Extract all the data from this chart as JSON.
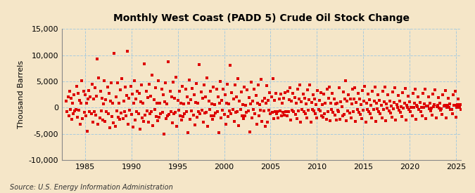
{
  "title": "Monthly West Coast (PADD 5) Crude Oil Stock Change",
  "ylabel": "Thousand Barrels",
  "source": "Source: U.S. Energy Information Administration",
  "bg_color": "#F5E6C8",
  "plot_bg": "#FDF6E3",
  "marker_color": "#DD0000",
  "grid_color": "#AAAAAA",
  "ylim": [
    -10000,
    15000
  ],
  "xlim": [
    1982.5,
    2025.5
  ],
  "yticks": [
    -10000,
    -5000,
    0,
    5000,
    10000,
    15000
  ],
  "xticks": [
    1985,
    1990,
    1995,
    2000,
    2005,
    2010,
    2015,
    2020,
    2025
  ],
  "start_year": 1983,
  "start_month": 1,
  "values": [
    1200,
    -800,
    2100,
    -1500,
    3200,
    -400,
    1800,
    -2200,
    900,
    -1100,
    2500,
    -600,
    -300,
    4100,
    -1800,
    2800,
    -500,
    1400,
    -3200,
    800,
    5200,
    -2100,
    3100,
    -900,
    2400,
    -1600,
    900,
    -4500,
    1700,
    3300,
    -800,
    2100,
    -1200,
    4500,
    -2800,
    1600,
    -700,
    3800,
    -1400,
    2200,
    9300,
    -3100,
    5700,
    -1900,
    3200,
    -600,
    1800,
    -2400,
    700,
    5100,
    -2600,
    1500,
    -800,
    3900,
    -1100,
    2700,
    -3800,
    1200,
    4800,
    -1700,
    800,
    -2900,
    10300,
    -3500,
    2100,
    -600,
    4700,
    -1800,
    900,
    -2200,
    3400,
    -1000,
    5600,
    -2100,
    1300,
    -700,
    3900,
    -1500,
    2300,
    10700,
    -3200,
    1800,
    -500,
    4100,
    -1300,
    2600,
    -3700,
    900,
    5200,
    -2400,
    1600,
    -800,
    3100,
    -1200,
    2800,
    -4100,
    1100,
    4300,
    -1900,
    800,
    -2600,
    8300,
    -1400,
    3200,
    -600,
    1900,
    -2800,
    4500,
    -1100,
    2200,
    -800,
    6200,
    -3400,
    1500,
    -400,
    3800,
    -1700,
    900,
    -2500,
    5100,
    -1800,
    800,
    -1200,
    3600,
    -900,
    2400,
    -5000,
    1100,
    4700,
    -2100,
    700,
    -1600,
    8700,
    -1300,
    3100,
    -700,
    2000,
    -2900,
    4900,
    -1200,
    1800,
    -900,
    5800,
    -3600,
    1400,
    -500,
    3200,
    -1500,
    800,
    -2300,
    4100,
    -1700,
    700,
    -1100,
    3600,
    -800,
    2100,
    -4800,
    900,
    5300,
    -2200,
    1500,
    -600,
    3700,
    -1400,
    2500,
    -3300,
    1000,
    4600,
    -1800,
    800,
    -700,
    8200,
    -1200,
    3000,
    -500,
    1800,
    -2700,
    4400,
    -1000,
    2100,
    -900,
    5700,
    -3500,
    1300,
    -400,
    3100,
    -1600,
    700,
    -2200,
    4000,
    -1600,
    600,
    -1000,
    3500,
    -700,
    2000,
    -4700,
    800,
    5000,
    -2000,
    1400,
    -500,
    3600,
    -1300,
    2400,
    -3200,
    900,
    4500,
    -1700,
    700,
    -600,
    8100,
    -1100,
    2900,
    -400,
    1700,
    -2600,
    4300,
    -900,
    2000,
    -800,
    5600,
    -3400,
    1200,
    -300,
    3000,
    -1500,
    600,
    -2100,
    3900,
    -1500,
    500,
    -900,
    3400,
    -600,
    1900,
    -4600,
    700,
    4900,
    -1900,
    1300,
    -400,
    3500,
    -1200,
    2300,
    -3100,
    800,
    4400,
    -1600,
    600,
    -500,
    5400,
    -2600,
    1300,
    -600,
    1800,
    -3500,
    800,
    4200,
    -2800,
    1400,
    -500,
    2900,
    -1100,
    2100,
    -900,
    5500,
    -2100,
    1400,
    -800,
    2800,
    -1200,
    -700,
    -1900,
    1600,
    -600,
    2600,
    -1500,
    800,
    -900,
    1800,
    -1400,
    2900,
    -800,
    -1600,
    3200,
    -700,
    1500,
    3800,
    -2400,
    1200,
    -500,
    2700,
    -800,
    1900,
    -1300,
    800,
    -2100,
    3500,
    -600,
    1600,
    4400,
    -2800,
    1100,
    -400,
    2600,
    -700,
    1800,
    -1200,
    700,
    -2000,
    3400,
    -500,
    1500,
    4300,
    -2700,
    1000,
    -300,
    2500,
    -600,
    1700,
    -1100,
    600,
    -1900,
    3300,
    -400,
    1400,
    -600,
    2900,
    -1600,
    600,
    -1800,
    2600,
    -1100,
    800,
    -2200,
    3500,
    -700,
    1800,
    4000,
    -2500,
    900,
    -400,
    2800,
    -900,
    1700,
    -1400,
    700,
    -2300,
    800,
    -500,
    -800,
    3800,
    -2200,
    1100,
    200,
    -1500,
    3000,
    -1300,
    1700,
    5100,
    -2500,
    1200,
    -600,
    2400,
    -1000,
    1600,
    -1900,
    700,
    3600,
    -700,
    1600,
    3800,
    -2600,
    1000,
    -400,
    2700,
    -900,
    1600,
    -1300,
    600,
    -2100,
    3300,
    -500,
    1300,
    4100,
    -2700,
    900,
    -300,
    2600,
    -800,
    1500,
    -1200,
    500,
    -2000,
    3200,
    -400,
    1200,
    4000,
    -2600,
    800,
    -200,
    2500,
    -700,
    1400,
    -1100,
    400,
    -1900,
    3100,
    -300,
    1100,
    3900,
    -2500,
    700,
    -100,
    2400,
    -600,
    1300,
    -1000,
    300,
    -1800,
    3000,
    -200,
    1000,
    3800,
    -2400,
    600,
    0,
    2300,
    -500,
    1200,
    -900,
    200,
    -1700,
    2900,
    -100,
    900,
    3700,
    -2300,
    500,
    100,
    2200,
    -400,
    1100,
    -800,
    100,
    -1600,
    2800,
    0,
    800,
    3600,
    -2200,
    400,
    200,
    2100,
    -300,
    1000,
    -700,
    0,
    -1500,
    2700,
    100,
    700,
    3500,
    -2100,
    300,
    300,
    2000,
    -200,
    900,
    -600,
    -100,
    -1400,
    2600,
    200,
    600,
    3400,
    -2000,
    200,
    400,
    1900,
    -100,
    800,
    -500,
    -200,
    -1300,
    2500,
    300,
    500,
    3300,
    -1900,
    100,
    500,
    1800,
    0,
    700,
    -400,
    -300,
    -1200,
    2400,
    400,
    400,
    3200,
    -1800,
    0,
    600,
    1700,
    100,
    600,
    -300
  ]
}
